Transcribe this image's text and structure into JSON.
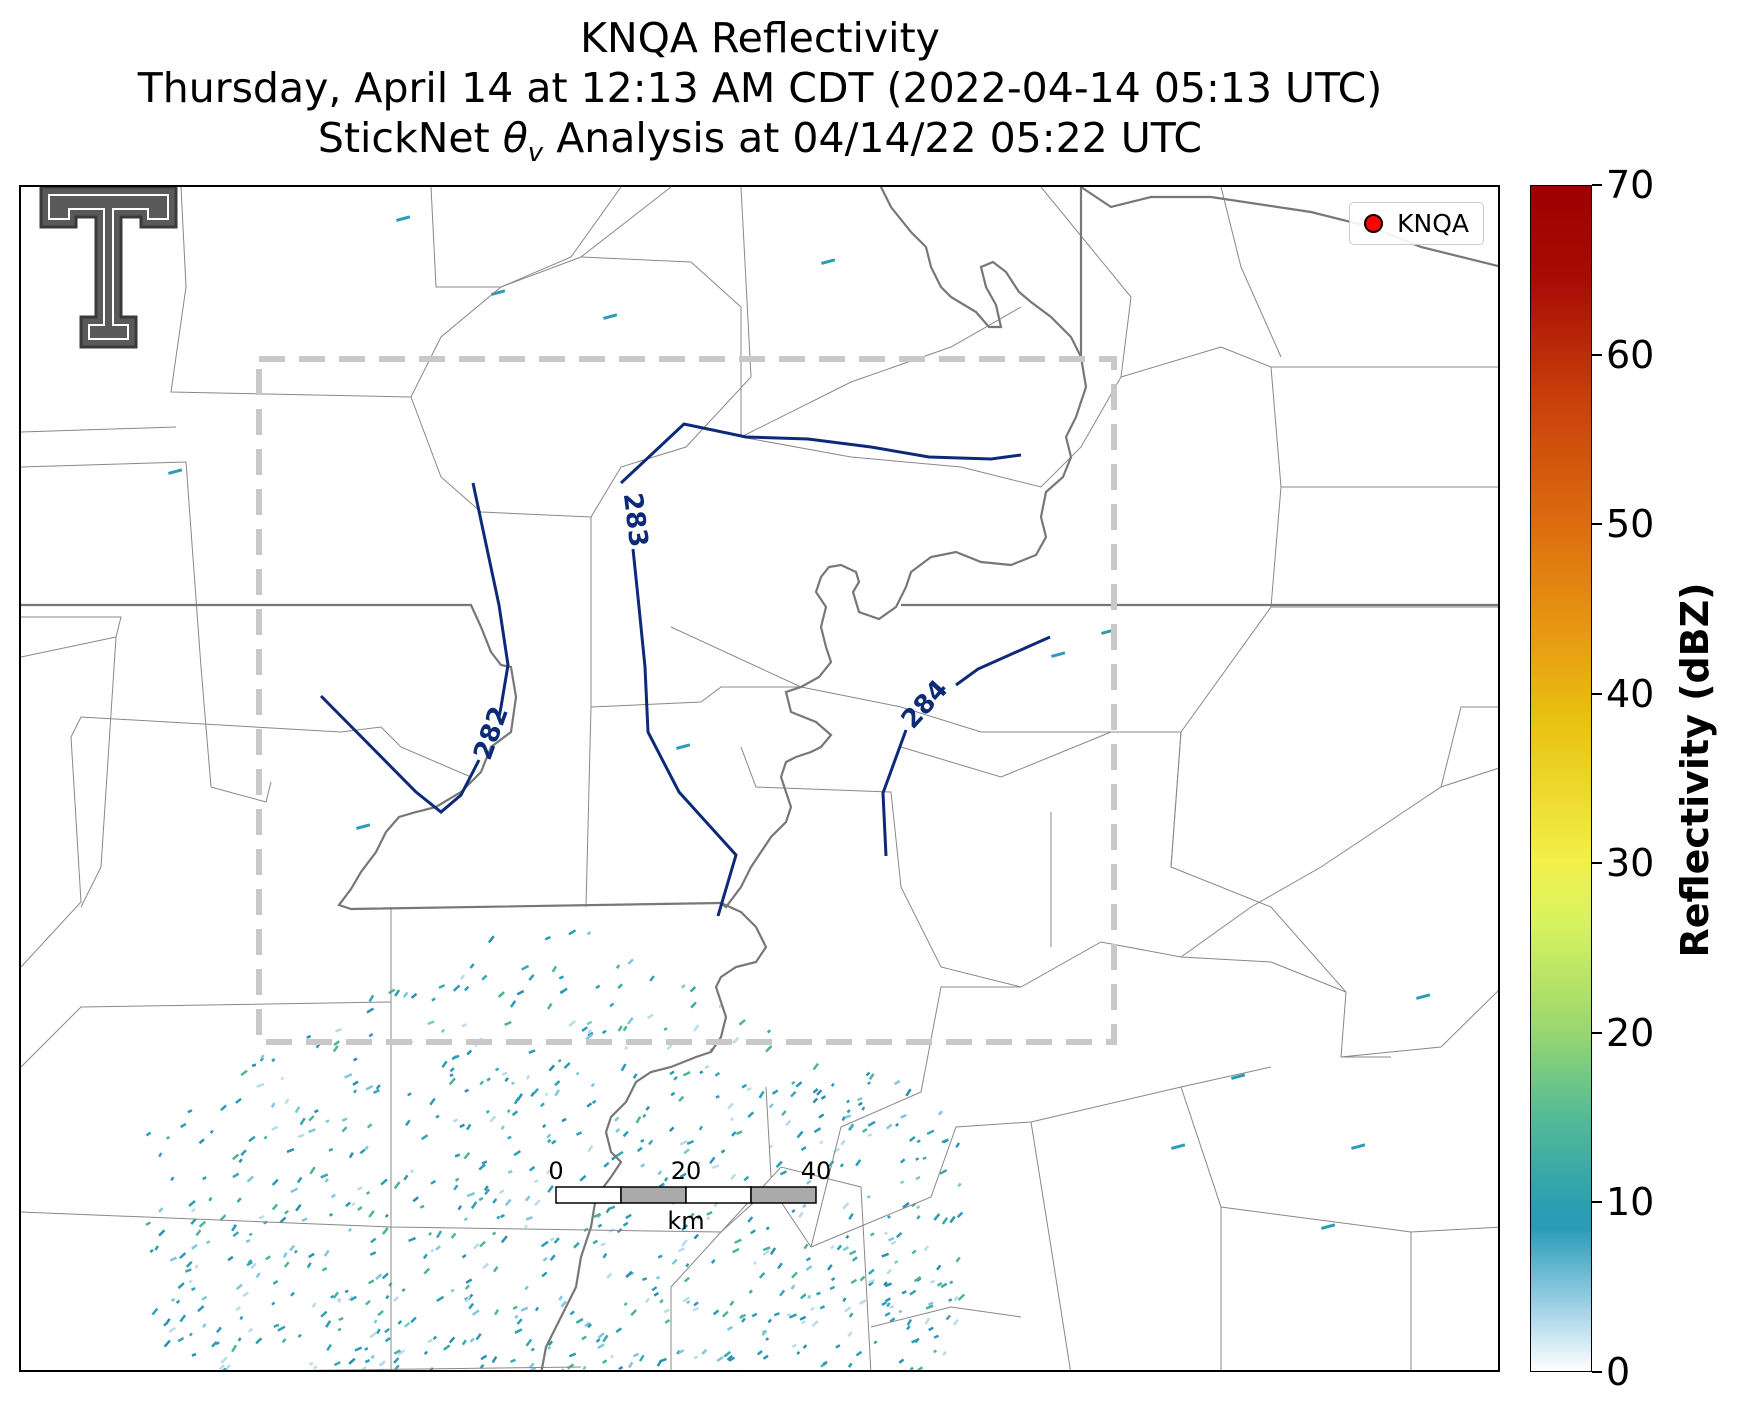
{
  "title": {
    "line1": "KNQA Reflectivity",
    "line2": "Thursday, April 14 at 12:13 AM CDT (2022-04-14 05:13 UTC)",
    "line3": "StickNet θv Analysis at 04/14/22 05:22 UTC"
  },
  "legend": {
    "label": "KNQA",
    "marker_color": "#ff0000"
  },
  "logo": {
    "text": "T"
  },
  "contours": [
    {
      "label": "282"
    },
    {
      "label": "283"
    },
    {
      "label": "284"
    }
  ],
  "scale_bar": {
    "ticks": [
      "0",
      "20",
      "40"
    ],
    "unit": "km"
  },
  "colorbar": {
    "title": "Reflectivity (dBZ)",
    "ticks": [
      "0",
      "10",
      "20",
      "30",
      "40",
      "50",
      "60",
      "70"
    ],
    "range": [
      0,
      70
    ]
  },
  "colors": {
    "contour": "#0d2a78",
    "analysis_box": "#c8c8c8",
    "boundaries": "#888888"
  }
}
